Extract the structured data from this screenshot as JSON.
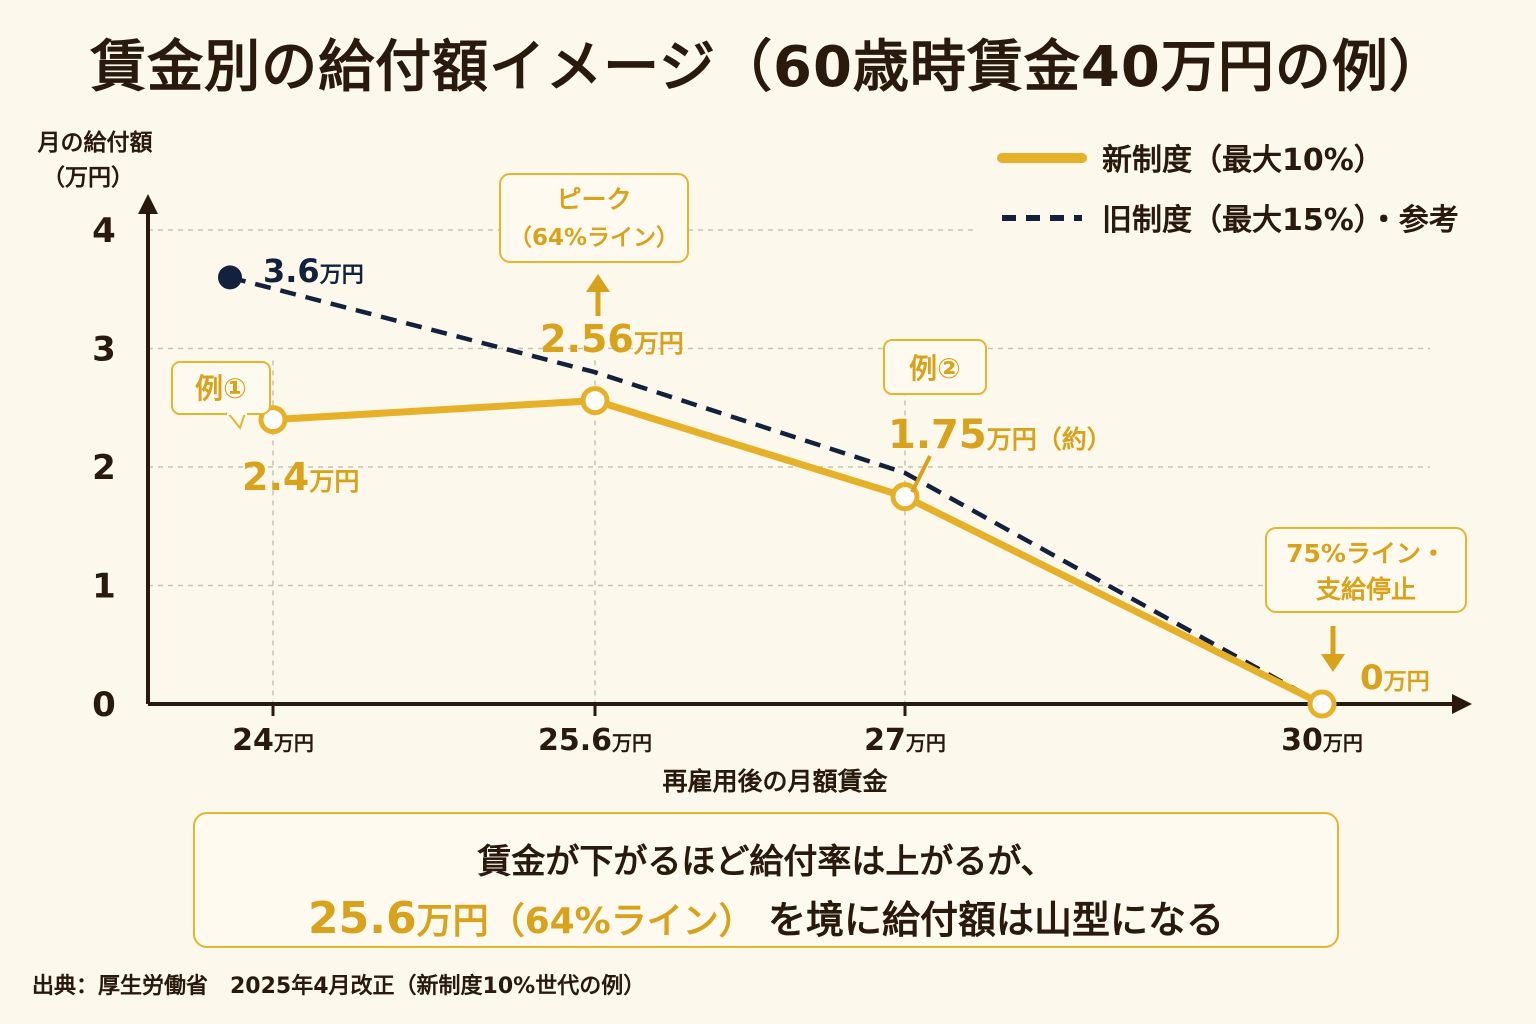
{
  "title": "賃金別の給付額イメージ（60歳時賃金40万円の例）",
  "colors": {
    "new": "#e6b128",
    "old": "#14213d",
    "text": "#2a1a0e",
    "accent": "#d9a21c",
    "bg": "#fcf8ec"
  },
  "chart_data": {
    "type": "line",
    "ylabel": "月の給付額",
    "yunit": "（万円）",
    "xlabel": "再雇用後の月額賃金",
    "ylim": [
      0,
      4
    ],
    "yticks": [
      "0",
      "1",
      "2",
      "3",
      "4"
    ],
    "xticks": [
      "24",
      "25.6",
      "27",
      "30"
    ],
    "tick_unit": "万円",
    "grid": true,
    "legend_position": "top-right",
    "series": [
      {
        "name": "新制度（最大10%）",
        "style": "solid",
        "points": [
          {
            "x": 24,
            "y": 2.4
          },
          {
            "x": 25.6,
            "y": 2.56
          },
          {
            "x": 27,
            "y": 1.75
          },
          {
            "x": 30,
            "y": 0
          }
        ]
      },
      {
        "name": "旧制度（最大15%）・参考",
        "style": "dashed",
        "points": [
          {
            "x": 23.5,
            "y": 3.6
          },
          {
            "x": 25.6,
            "y": 2.8
          },
          {
            "x": 27,
            "y": 1.95
          },
          {
            "x": 30,
            "y": 0
          }
        ]
      }
    ],
    "annotations": {
      "old_start": {
        "value": "3.6",
        "unit": "万円"
      },
      "ex1": {
        "tag": "例①",
        "value": "2.4",
        "unit": "万円"
      },
      "peak": {
        "line1": "ピーク",
        "line2": "（64%ライン）",
        "value": "2.56",
        "unit": "万円"
      },
      "ex2": {
        "tag": "例②",
        "value": "1.75",
        "unit": "万円（約）"
      },
      "stop": {
        "line1": "75%ライン・",
        "line2": "支給停止",
        "value": "0",
        "unit": "万円"
      }
    }
  },
  "summary": {
    "line1": "賃金が下がるほど給付率は上がるが、",
    "highlight_num": "25.6",
    "highlight_unit": "万円（64%ライン）",
    "line2_rest": "を境に給付額は山型になる"
  },
  "source": "出典：厚生労働省　2025年4月改正（新制度10%世代の例）"
}
